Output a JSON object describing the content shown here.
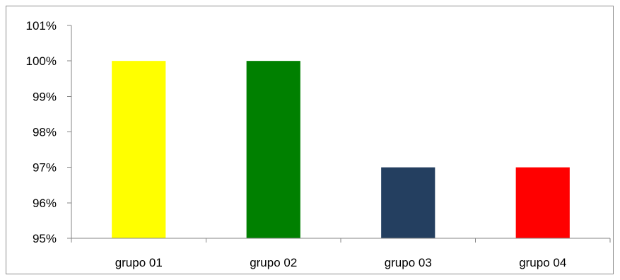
{
  "chart_data": {
    "type": "bar",
    "categories": [
      "grupo 01",
      "grupo 02",
      "grupo 03",
      "grupo 04"
    ],
    "values": [
      100,
      100,
      97,
      97
    ],
    "colors": [
      "#FFFF00",
      "#008000",
      "#243F60",
      "#FF0000"
    ],
    "ylim": [
      95,
      101
    ],
    "yticks": [
      95,
      96,
      97,
      98,
      99,
      100,
      101
    ],
    "ytick_labels": [
      "95%",
      "96%",
      "97%",
      "98%",
      "99%",
      "100%",
      "101%"
    ],
    "title": "",
    "xlabel": "",
    "ylabel": "",
    "grid": false,
    "legend": "none"
  }
}
